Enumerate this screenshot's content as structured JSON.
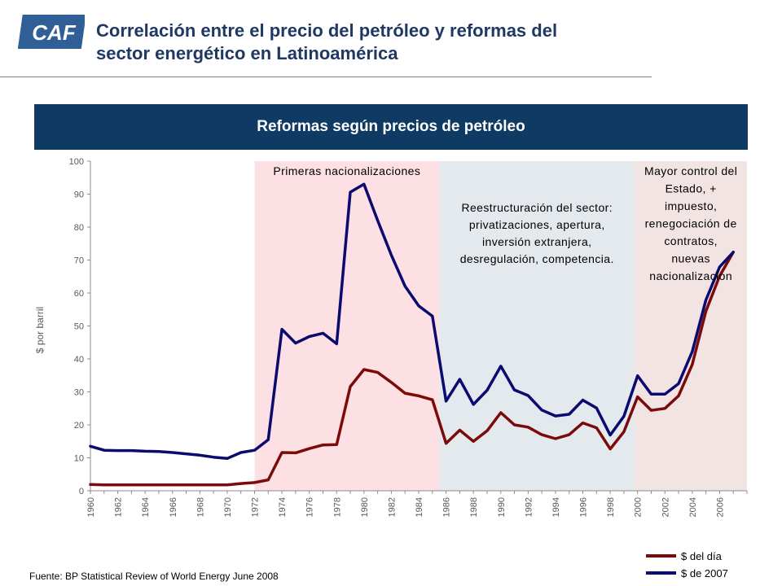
{
  "header": {
    "logo_text": "CAF",
    "title_line1": "Correlación entre el precio del petróleo y reformas del",
    "title_line2": "sector energético en Latinoamérica"
  },
  "chart_header": "Reformas según precios de petróleo",
  "source": "Fuente: BP Statistical Review of World Energy June 2008",
  "colors": {
    "title": "#1f3864",
    "header_bg": "#0e3a64",
    "series_nominal": "#7b0a0a",
    "series_real": "#0b0b6f",
    "region_1": "#fde0e4",
    "region_2": "#e4e9ee",
    "region_3": "#f3e4e4"
  },
  "chart_data": {
    "type": "line",
    "ylabel": "$ por barril",
    "ylim": [
      0,
      100
    ],
    "yticks": [
      0,
      10,
      20,
      30,
      40,
      50,
      60,
      70,
      80,
      90,
      100
    ],
    "xlim": [
      1960,
      2008
    ],
    "xticks": [
      1960,
      1962,
      1964,
      1966,
      1968,
      1970,
      1972,
      1974,
      1976,
      1978,
      1980,
      1982,
      1984,
      1986,
      1988,
      1990,
      1992,
      1994,
      1996,
      1998,
      2000,
      2002,
      2004,
      2006
    ],
    "grid": false,
    "legend_position": "bottom-right",
    "x": [
      1960,
      1961,
      1962,
      1963,
      1964,
      1965,
      1966,
      1967,
      1968,
      1969,
      1970,
      1971,
      1972,
      1973,
      1974,
      1975,
      1976,
      1977,
      1978,
      1979,
      1980,
      1981,
      1982,
      1983,
      1984,
      1985,
      1986,
      1987,
      1988,
      1989,
      1990,
      1991,
      1992,
      1993,
      1994,
      1995,
      1996,
      1997,
      1998,
      1999,
      2000,
      2001,
      2002,
      2003,
      2004,
      2005,
      2006,
      2007
    ],
    "series": [
      {
        "name": "$ del día",
        "color_key": "series_nominal",
        "values": [
          1.9,
          1.8,
          1.8,
          1.8,
          1.8,
          1.8,
          1.8,
          1.8,
          1.8,
          1.8,
          1.8,
          2.2,
          2.5,
          3.3,
          11.6,
          11.5,
          12.8,
          13.9,
          14.0,
          31.6,
          36.8,
          35.9,
          32.9,
          29.6,
          28.8,
          27.6,
          14.4,
          18.4,
          15.0,
          18.2,
          23.7,
          20.0,
          19.3,
          17.0,
          15.8,
          17.0,
          20.6,
          19.1,
          12.7,
          17.9,
          28.5,
          24.4,
          25.0,
          28.8,
          38.3,
          54.5,
          65.1,
          72.4
        ]
      },
      {
        "name": "$ de 2007",
        "color_key": "series_real",
        "values": [
          13.5,
          12.3,
          12.2,
          12.2,
          12.0,
          11.9,
          11.6,
          11.2,
          10.8,
          10.2,
          9.8,
          11.6,
          12.3,
          15.5,
          49.0,
          44.8,
          46.8,
          47.8,
          44.6,
          90.6,
          93.0,
          82.0,
          71.5,
          62.1,
          56.1,
          53.0,
          27.2,
          33.8,
          26.2,
          30.5,
          37.8,
          30.6,
          28.9,
          24.5,
          22.7,
          23.2,
          27.5,
          25.1,
          16.9,
          22.6,
          34.9,
          29.3,
          29.3,
          32.5,
          42.2,
          57.9,
          67.9,
          72.4
        ]
      }
    ],
    "regions": [
      {
        "from": 1972,
        "to": 1985.5,
        "label_lines": [
          "Primeras nacionalizaciones"
        ],
        "color_key": "region_1"
      },
      {
        "from": 1985.5,
        "to": 1999.8,
        "label_lines": [
          "Reestructuración del sector:",
          "privatizaciones, apertura,",
          "inversión extranjera,",
          "desregulación, competencia."
        ],
        "color_key": "region_2"
      },
      {
        "from": 1999.8,
        "to": 2008,
        "label_lines": [
          "Mayor control del",
          "Estado, +",
          "impuesto,",
          "renegociación de",
          "contratos,",
          "nuevas",
          "nacionalizacion"
        ],
        "color_key": "region_3"
      }
    ]
  }
}
